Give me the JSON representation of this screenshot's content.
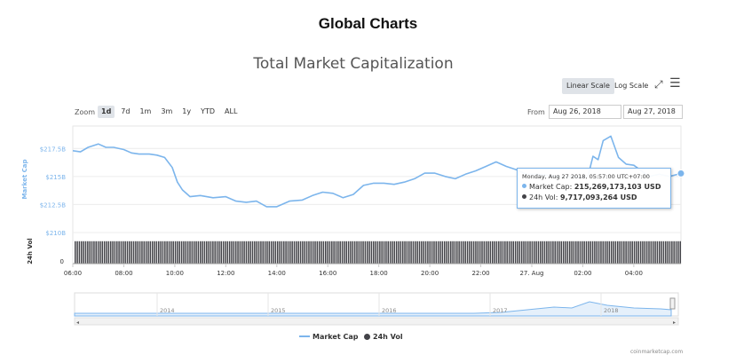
{
  "header": {
    "page_title": "Global Charts"
  },
  "toolbar": {
    "linear_scale": "Linear Scale",
    "log_scale": "Log Scale",
    "zoom_label": "Zoom",
    "zoom_options": [
      "1d",
      "7d",
      "1m",
      "3m",
      "1y",
      "YTD",
      "ALL"
    ],
    "active_zoom": "1d",
    "from_label": "From",
    "from_value": "Aug 26, 2018",
    "to_value": "Aug 27, 2018"
  },
  "tooltip": {
    "date": "Monday, Aug 27 2018, 05:57:00 UTC+07:00",
    "market_cap_label": "Market Cap:",
    "market_cap_value": "215,269,173,103 USD",
    "vol_label": "24h Vol:",
    "vol_value": "9,717,093,264 USD"
  },
  "legend": {
    "market_cap": "Market Cap",
    "vol": "24h Vol"
  },
  "credit": "coinmarketcap.com",
  "colors": {
    "market_cap": "#7cb5ec",
    "vol": "#434348",
    "accent": "#2f7ed8"
  },
  "chart_data": {
    "type": "line",
    "title": "Total Market Capitalization",
    "y_axis": {
      "label": "Market Cap",
      "ticks": [
        "$217.5B",
        "$215B",
        "$212.5B",
        "$210B"
      ],
      "tick_values": [
        217.5,
        215,
        212.5,
        210
      ],
      "ylim": [
        210,
        219.5
      ]
    },
    "y2_axis": {
      "label": "24h Vol",
      "ticks": [
        "0"
      ]
    },
    "x_axis": {
      "ticks": [
        "06:00",
        "08:00",
        "10:00",
        "12:00",
        "14:00",
        "16:00",
        "18:00",
        "20:00",
        "22:00",
        "27. Aug",
        "02:00",
        "04:00"
      ],
      "tick_hours": [
        6,
        8,
        10,
        12,
        14,
        16,
        18,
        20,
        22,
        24,
        26,
        28
      ],
      "xlim_hours": [
        6,
        29.85
      ]
    },
    "series": [
      {
        "name": "Market Cap",
        "x_hours": [
          6,
          6.3,
          6.6,
          7,
          7.3,
          7.6,
          8,
          8.3,
          8.6,
          9,
          9.3,
          9.6,
          9.9,
          10.1,
          10.3,
          10.6,
          11,
          11.5,
          12,
          12.4,
          12.8,
          13.2,
          13.6,
          14,
          14.5,
          15,
          15.4,
          15.8,
          16.2,
          16.6,
          17,
          17.4,
          17.8,
          18.2,
          18.6,
          19,
          19.4,
          19.8,
          20.2,
          20.6,
          21,
          21.4,
          21.8,
          22.2,
          22.6,
          23,
          23.4,
          23.8,
          24.2,
          24.6,
          25,
          25.3,
          25.6,
          25.9,
          26.2,
          26.4,
          26.6,
          26.8,
          27.1,
          27.4,
          27.7,
          28.0,
          28.3,
          28.6,
          29.0,
          29.4,
          29.85
        ],
        "values": [
          217.3,
          217.2,
          217.6,
          217.9,
          217.6,
          217.6,
          217.4,
          217.1,
          217.0,
          217.0,
          216.9,
          216.7,
          215.8,
          214.5,
          213.8,
          213.2,
          213.3,
          213.1,
          213.2,
          212.8,
          212.7,
          212.8,
          212.3,
          212.3,
          212.8,
          212.9,
          213.3,
          213.6,
          213.5,
          213.1,
          213.4,
          214.2,
          214.4,
          214.4,
          214.3,
          214.5,
          214.8,
          215.3,
          215.3,
          215.0,
          214.8,
          215.2,
          215.5,
          215.9,
          216.3,
          215.9,
          215.6,
          215.2,
          215.2,
          215.1,
          215.0,
          214.9,
          215.0,
          214.9,
          215.0,
          216.8,
          216.5,
          218.2,
          218.6,
          216.7,
          216.1,
          216.0,
          215.5,
          215.0,
          215.2,
          215.0,
          215.27
        ]
      },
      {
        "name": "24h Vol",
        "note_values": "near-constant volume bars across the range",
        "values_relative": 0.97
      }
    ],
    "navigator": {
      "ticks": [
        "2014",
        "2015",
        "2016",
        "2017",
        "2018"
      ]
    }
  }
}
